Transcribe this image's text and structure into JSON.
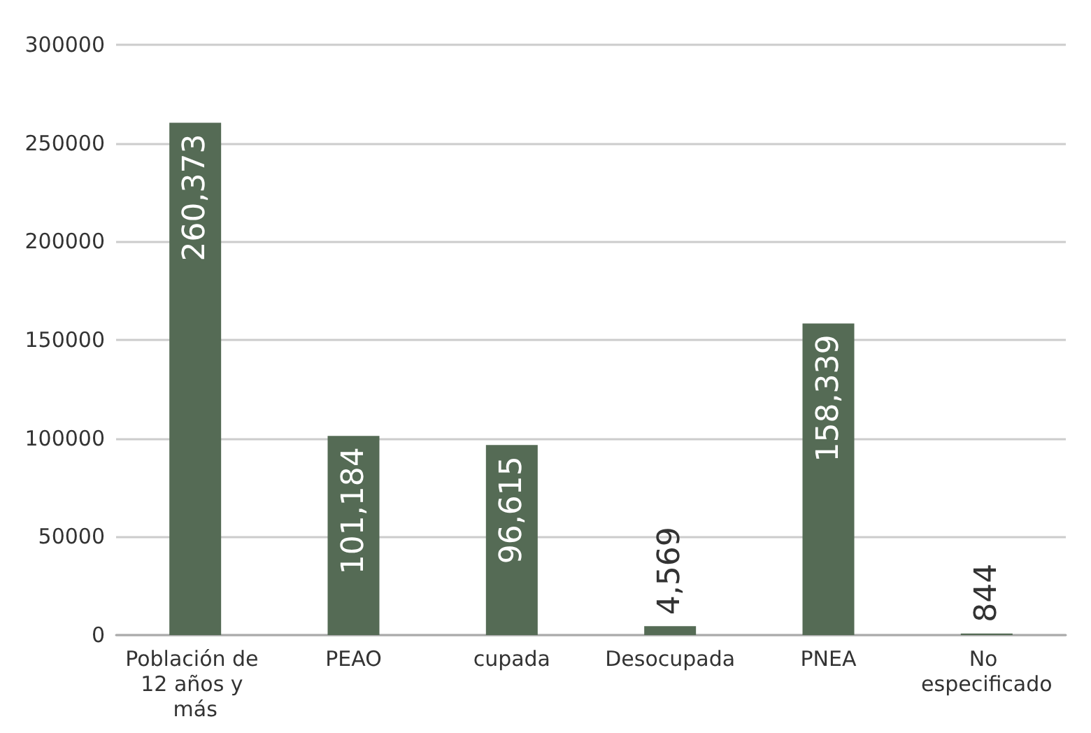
{
  "chart_data": {
    "type": "bar",
    "categories": [
      "Población de 12 años y más",
      "PEAO",
      "cupada",
      "Desocupada",
      "PNEA",
      "No especificado"
    ],
    "values": [
      260373,
      101184,
      96615,
      4569,
      158339,
      844
    ],
    "value_labels": [
      "260,373",
      "101,184",
      "96,615",
      "4,569",
      "158,339",
      "844"
    ],
    "color": "#556b55",
    "ylim": [
      0,
      300000
    ],
    "yticks": [
      0,
      50000,
      100000,
      150000,
      200000,
      250000,
      300000
    ],
    "grid": "y"
  }
}
